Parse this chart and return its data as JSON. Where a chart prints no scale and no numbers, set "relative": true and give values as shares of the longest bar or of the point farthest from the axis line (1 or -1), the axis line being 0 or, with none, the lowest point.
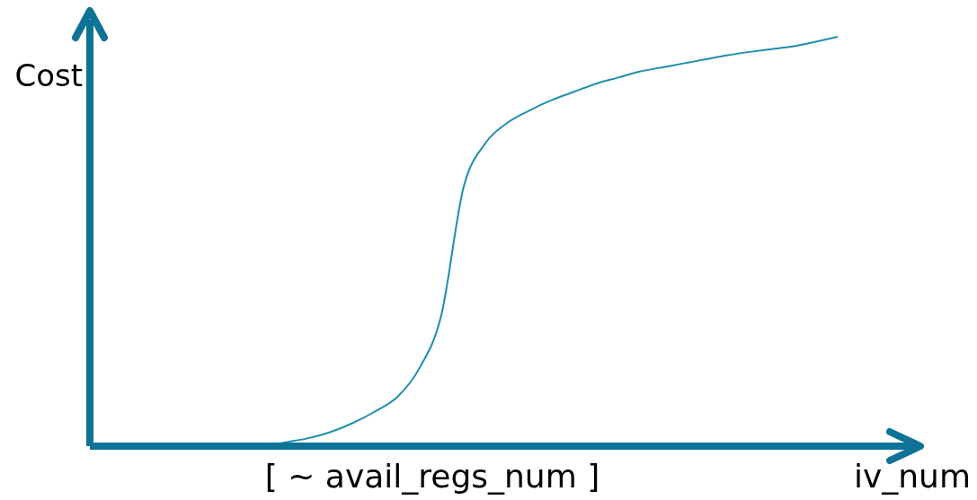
{
  "chart_data": {
    "type": "line",
    "relative": true,
    "xlabel": "iv_num",
    "categories": [
      null,
      null,
      null,
      null,
      null,
      null,
      null,
      null,
      null,
      null,
      null,
      null,
      null,
      null,
      null,
      null,
      null,
      null,
      null,
      null,
      null,
      null,
      null,
      null,
      null,
      null,
      null
    ],
    "series": [
      {
        "color": "#1f8eae",
        "values": [
          0,
          0.01,
          0.02,
          0.035,
          0.057,
          0.085,
          0.12,
          0.19,
          0.32,
          0.63,
          0.74,
          0.79,
          0.82,
          0.845,
          0.865,
          0.885,
          0.9,
          0.915,
          0.925,
          0.935,
          0.945,
          0.955,
          0.963,
          0.97,
          0.977,
          0.988,
          1
        ]
      }
    ],
    "annotations": [
      "[ ~ avail_regs_num ]",
      "Cost"
    ],
    "marker": "none",
    "line_style": "solid"
  }
}
